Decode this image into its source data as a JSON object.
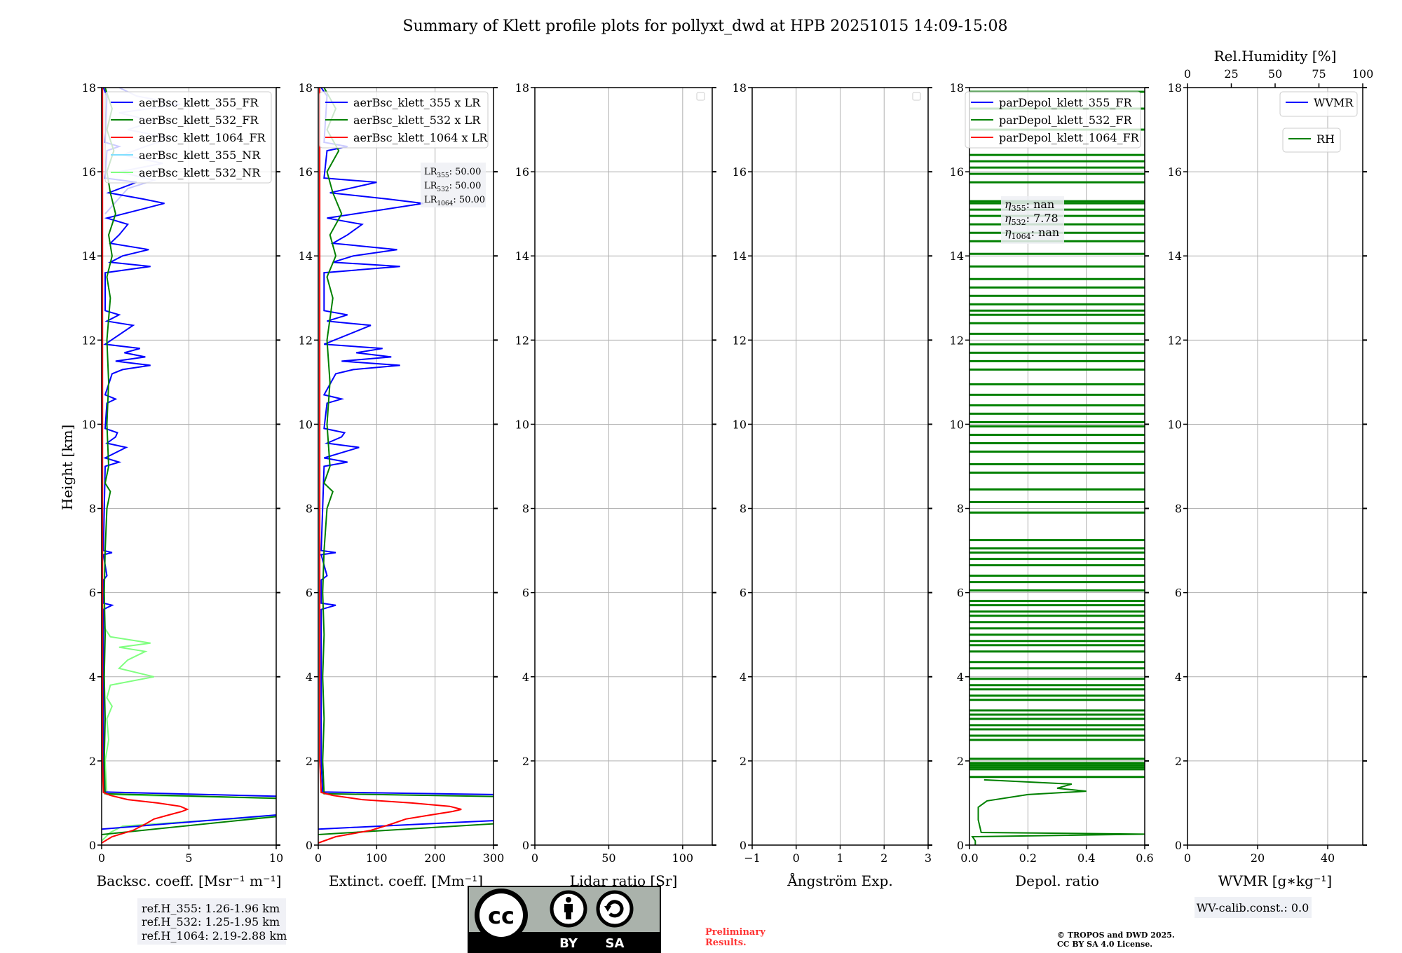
{
  "title": "Summary of Klett profile plots for pollyxt_dwd at HPB 20251015 14:09-15:08",
  "ylabel": "Height [km]",
  "ref_heights": [
    "ref.H_355: 1.26-1.96 km",
    "ref.H_532: 1.25-1.95 km",
    "ref.H_1064: 2.19-2.88 km"
  ],
  "wv_calib": "WV-calib.const.: 0.0",
  "preliminary": [
    "Preliminary",
    "Results."
  ],
  "copyright": [
    "© TROPOS and DWD 2025.",
    "CC BY SA 4.0 License."
  ],
  "license_logo": {
    "cc": "cc",
    "by": "BY",
    "sa": "SA"
  },
  "colors": {
    "blue": "#0000ff",
    "green": "#008000",
    "red": "#ff0000",
    "nr355": "#c8c8ff",
    "nr355_legend": "#7fdfff",
    "nr532": "#80ff80",
    "prelim": "#ff3333"
  },
  "chart_data": {
    "type": "line",
    "ylim": [
      0,
      18
    ],
    "yticks": [
      0,
      2,
      4,
      6,
      8,
      10,
      12,
      14,
      16,
      18
    ],
    "grid": true,
    "lidar_ratio": 50,
    "panels": [
      {
        "xlabel": "Backsc. coeff. [Msr⁻¹ m⁻¹]",
        "xlim": [
          0,
          10
        ],
        "xticks": [
          "0",
          "5",
          "10"
        ],
        "legend": [
          "aerBsc_klett_355_FR",
          "aerBsc_klett_532_FR",
          "aerBsc_klett_1064_FR",
          "aerBsc_klett_355_NR",
          "aerBsc_klett_532_NR"
        ],
        "legend_placement": "top-right"
      },
      {
        "xlabel": "Extinct. coeff. [Mm⁻¹]",
        "xlim": [
          0,
          300
        ],
        "xticks": [
          "0",
          "100",
          "200",
          "300"
        ],
        "legend": [
          "aerBsc_klett_355 x LR",
          "aerBsc_klett_532 x LR",
          "aerBsc_klett_1064 x LR"
        ],
        "legend_placement": "top-right",
        "annotation": {
          "prefix": "LR",
          "items": [
            {
              "sub": "355",
              "value": ": 50.00"
            },
            {
              "sub": "532",
              "value": ": 50.00"
            },
            {
              "sub": "1064",
              "value": ": 50.00"
            }
          ]
        }
      },
      {
        "xlabel": "Lidar ratio [Sr]",
        "xlim": [
          0,
          120
        ],
        "xticks": [
          "0",
          "50",
          "100"
        ],
        "legend": []
      },
      {
        "xlabel": "Ångström Exp.",
        "xlim": [
          -1,
          3
        ],
        "xticks": [
          "−1",
          "0",
          "1",
          "2",
          "3"
        ],
        "legend": []
      },
      {
        "xlabel": "Depol. ratio",
        "xlim": [
          0,
          0.6
        ],
        "xticks": [
          "0.0",
          "0.2",
          "0.4",
          "0.6"
        ],
        "legend": [
          "parDepol_klett_355_FR",
          "parDepol_klett_532_FR",
          "parDepol_klett_1064_FR"
        ],
        "legend_placement": "top-left",
        "annotation": {
          "prefix": "η",
          "items": [
            {
              "sub": "355",
              "value": ": nan"
            },
            {
              "sub": "532",
              "value": ": 7.78"
            },
            {
              "sub": "1064",
              "value": ": nan"
            }
          ]
        }
      },
      {
        "xlabel": "WVMR [g∗kg⁻¹]",
        "xlim": [
          0,
          50
        ],
        "xticks": [
          "0",
          "20",
          "40"
        ],
        "top_xlabel": "Rel.Humidity [%]",
        "top_xlim": [
          0,
          100
        ],
        "top_xticks": [
          "0",
          "25",
          "50",
          "75",
          "100"
        ],
        "legend": [
          "WVMR",
          "RH"
        ],
        "legend_placement": "top-right"
      }
    ],
    "series": {
      "bsc_355_FR": [
        [
          0.38,
          0
        ],
        [
          0.75,
          11
        ],
        [
          1.15,
          11
        ],
        [
          1.26,
          0.15
        ],
        [
          2.0,
          0.1
        ],
        [
          5.6,
          0.1
        ],
        [
          5.7,
          0.6
        ],
        [
          5.75,
          0.1
        ],
        [
          6.3,
          0.1
        ],
        [
          6.4,
          0.3
        ],
        [
          6.9,
          0.1
        ],
        [
          6.95,
          0.6
        ],
        [
          7.0,
          0.1
        ],
        [
          9.0,
          0.2
        ],
        [
          9.1,
          1.0
        ],
        [
          9.2,
          0.2
        ],
        [
          9.45,
          1.4
        ],
        [
          9.55,
          0.3
        ],
        [
          9.7,
          0.8
        ],
        [
          9.8,
          0.9
        ],
        [
          9.9,
          0.2
        ],
        [
          10.5,
          0.3
        ],
        [
          10.6,
          0.8
        ],
        [
          10.7,
          0.2
        ],
        [
          11.2,
          0.6
        ],
        [
          11.3,
          1.2
        ],
        [
          11.4,
          2.8
        ],
        [
          11.5,
          0.8
        ],
        [
          11.6,
          2.5
        ],
        [
          11.7,
          1.3
        ],
        [
          11.8,
          2.2
        ],
        [
          11.9,
          0.2
        ],
        [
          12.35,
          1.8
        ],
        [
          12.45,
          0.3
        ],
        [
          12.6,
          1.0
        ],
        [
          12.7,
          0.2
        ],
        [
          13.6,
          0.2
        ],
        [
          13.75,
          2.8
        ],
        [
          13.85,
          0.5
        ],
        [
          14.0,
          1.2
        ],
        [
          14.15,
          2.7
        ],
        [
          14.3,
          0.5
        ],
        [
          14.5,
          1.0
        ],
        [
          14.75,
          1.5
        ],
        [
          14.9,
          0.3
        ],
        [
          15.1,
          2.2
        ],
        [
          15.25,
          3.6
        ],
        [
          15.35,
          2.4
        ],
        [
          15.5,
          0.4
        ],
        [
          15.75,
          2.0
        ],
        [
          15.85,
          0.2
        ],
        [
          16.5,
          0.3
        ],
        [
          16.6,
          1.0
        ],
        [
          16.7,
          0.2
        ],
        [
          17.8,
          0.3
        ],
        [
          18,
          0.1
        ]
      ],
      "bsc_532_FR": [
        [
          0.25,
          0
        ],
        [
          0.72,
          11
        ],
        [
          1.1,
          11
        ],
        [
          1.22,
          0.2
        ],
        [
          2,
          0.15
        ],
        [
          3,
          0.2
        ],
        [
          4,
          0.15
        ],
        [
          5,
          0.2
        ],
        [
          6,
          0.15
        ],
        [
          7,
          0.2
        ],
        [
          8,
          0.3
        ],
        [
          8.4,
          0.5
        ],
        [
          8.6,
          0.2
        ],
        [
          9,
          0.4
        ],
        [
          10,
          0.3
        ],
        [
          11,
          0.4
        ],
        [
          12,
          0.3
        ],
        [
          13,
          0.5
        ],
        [
          13.5,
          0.3
        ],
        [
          14,
          0.6
        ],
        [
          14.5,
          0.4
        ],
        [
          15,
          0.8
        ],
        [
          15.5,
          0.5
        ],
        [
          16,
          0.3
        ],
        [
          16.5,
          0.7
        ],
        [
          17,
          0.3
        ],
        [
          17.5,
          0.6
        ],
        [
          18,
          0.2
        ]
      ],
      "bsc_1064_FR": [
        [
          0.05,
          0
        ],
        [
          0.2,
          0.6
        ],
        [
          0.35,
          1.8
        ],
        [
          0.5,
          2.5
        ],
        [
          0.62,
          3.0
        ],
        [
          0.7,
          3.7
        ],
        [
          0.8,
          4.6
        ],
        [
          0.85,
          4.9
        ],
        [
          0.92,
          4.5
        ],
        [
          1.0,
          3.2
        ],
        [
          1.08,
          1.5
        ],
        [
          1.18,
          0.5
        ],
        [
          1.25,
          0.1
        ],
        [
          2,
          0.05
        ],
        [
          18,
          0.05
        ]
      ],
      "bsc_355_NR": [
        [
          15.0,
          0.2
        ],
        [
          15.6,
          1.5
        ],
        [
          15.8,
          3.0
        ],
        [
          16.0,
          1.0
        ],
        [
          16.2,
          3.5
        ],
        [
          16.4,
          1.2
        ],
        [
          16.6,
          2.5
        ],
        [
          16.8,
          4.0
        ],
        [
          17.0,
          1.5
        ],
        [
          17.2,
          3.0
        ],
        [
          17.4,
          1.0
        ],
        [
          17.6,
          4.5
        ],
        [
          17.8,
          2.0
        ],
        [
          18.0,
          1.0
        ]
      ],
      "bsc_532_NR": [
        [
          0.1,
          0
        ],
        [
          0.3,
          0.5
        ],
        [
          0.45,
          1.2
        ],
        [
          0.6,
          6.5
        ],
        [
          0.7,
          11
        ],
        [
          1.1,
          11
        ],
        [
          1.2,
          0.3
        ],
        [
          2.0,
          0.2
        ],
        [
          2.5,
          0.4
        ],
        [
          3.0,
          0.3
        ],
        [
          3.3,
          0.6
        ],
        [
          3.5,
          0.3
        ],
        [
          3.8,
          0.5
        ],
        [
          4.0,
          3.0
        ],
        [
          4.2,
          1.0
        ],
        [
          4.4,
          1.5
        ],
        [
          4.6,
          2.5
        ],
        [
          4.7,
          1.0
        ],
        [
          4.8,
          2.8
        ],
        [
          4.95,
          0.5
        ],
        [
          5.2,
          0.1
        ],
        [
          6,
          0.05
        ]
      ],
      "depol_532_FR": [
        [
          0,
          0.02
        ],
        [
          0.1,
          0.02
        ],
        [
          0.2,
          0.01
        ],
        [
          0.26,
          0.6
        ],
        [
          0.3,
          0.04
        ],
        [
          0.6,
          0.03
        ],
        [
          0.9,
          0.03
        ],
        [
          1.05,
          0.06
        ],
        [
          1.2,
          0.2
        ],
        [
          1.28,
          0.4
        ],
        [
          1.35,
          0.3
        ],
        [
          1.45,
          0.35
        ],
        [
          1.55,
          0.05
        ]
      ],
      "depol_spikes": [
        1.62,
        1.8,
        1.85,
        1.9,
        1.95,
        2.05,
        2.5,
        2.6,
        2.75,
        2.85,
        3.0,
        3.1,
        3.2,
        3.45,
        3.55,
        3.7,
        3.8,
        3.95,
        4.2,
        4.35,
        4.6,
        4.75,
        4.85,
        5.0,
        5.15,
        5.3,
        5.45,
        5.55,
        5.7,
        5.8,
        6.05,
        6.25,
        6.4,
        6.65,
        6.8,
        6.95,
        7.05,
        7.25,
        7.9,
        8.15,
        8.45,
        8.85,
        9.05,
        9.35,
        9.55,
        9.75,
        9.95,
        10.05,
        10.25,
        10.45,
        10.7,
        10.95,
        11.3,
        11.5,
        11.7,
        11.9,
        12.15,
        12.4,
        12.6,
        12.7,
        12.85,
        13.05,
        13.25,
        13.45,
        13.75,
        14.05,
        14.35,
        14.55,
        14.75,
        14.95,
        15.1,
        15.25,
        15.3,
        15.75,
        15.95,
        16.1,
        16.25,
        16.4,
        17.0,
        17.5,
        17.9
      ]
    }
  }
}
